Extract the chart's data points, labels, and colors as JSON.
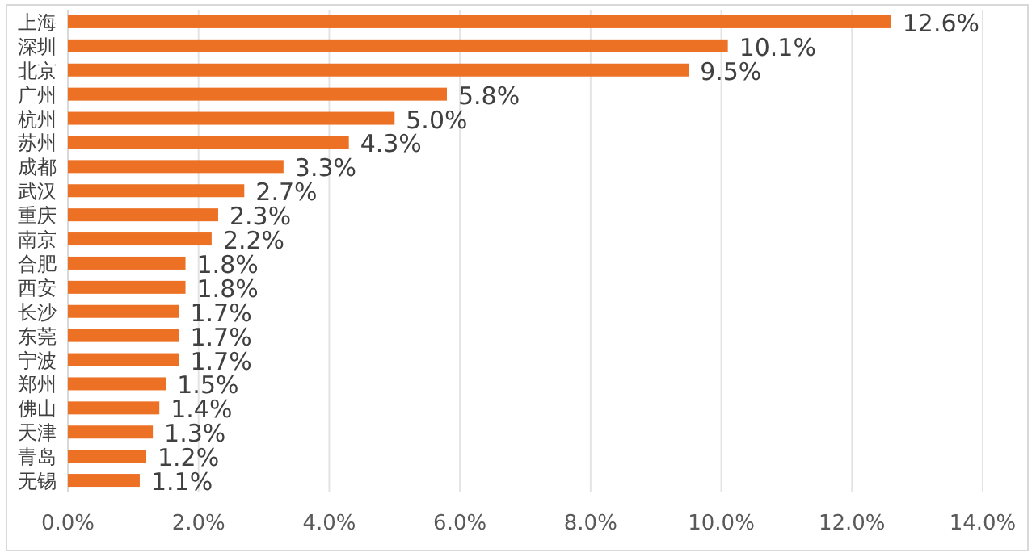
{
  "chart_data": {
    "type": "bar",
    "orientation": "horizontal",
    "categories": [
      "上海",
      "深圳",
      "北京",
      "广州",
      "杭州",
      "苏州",
      "成都",
      "武汉",
      "重庆",
      "南京",
      "合肥",
      "西安",
      "长沙",
      "东莞",
      "宁波",
      "郑州",
      "佛山",
      "天津",
      "青岛",
      "无锡"
    ],
    "values": [
      12.6,
      10.1,
      9.5,
      5.8,
      5.0,
      4.3,
      3.3,
      2.7,
      2.3,
      2.2,
      1.8,
      1.8,
      1.7,
      1.7,
      1.7,
      1.5,
      1.4,
      1.3,
      1.2,
      1.1
    ],
    "value_labels": [
      "12.6%",
      "10.1%",
      "9.5%",
      "5.8%",
      "5.0%",
      "4.3%",
      "3.3%",
      "2.7%",
      "2.3%",
      "2.2%",
      "1.8%",
      "1.8%",
      "1.7%",
      "1.7%",
      "1.7%",
      "1.5%",
      "1.4%",
      "1.3%",
      "1.2%",
      "1.1%"
    ],
    "color": "#ed7125",
    "xlim": [
      0,
      14
    ],
    "xticks": [
      {
        "value": 0,
        "label": "0.0%"
      },
      {
        "value": 2,
        "label": "2.0%"
      },
      {
        "value": 4,
        "label": "4.0%"
      },
      {
        "value": 6,
        "label": "6.0%"
      },
      {
        "value": 8,
        "label": "8.0%"
      },
      {
        "value": 10,
        "label": "10.0%"
      },
      {
        "value": 12,
        "label": "12.0%"
      },
      {
        "value": 14,
        "label": "14.0%"
      }
    ],
    "grid": "x"
  }
}
